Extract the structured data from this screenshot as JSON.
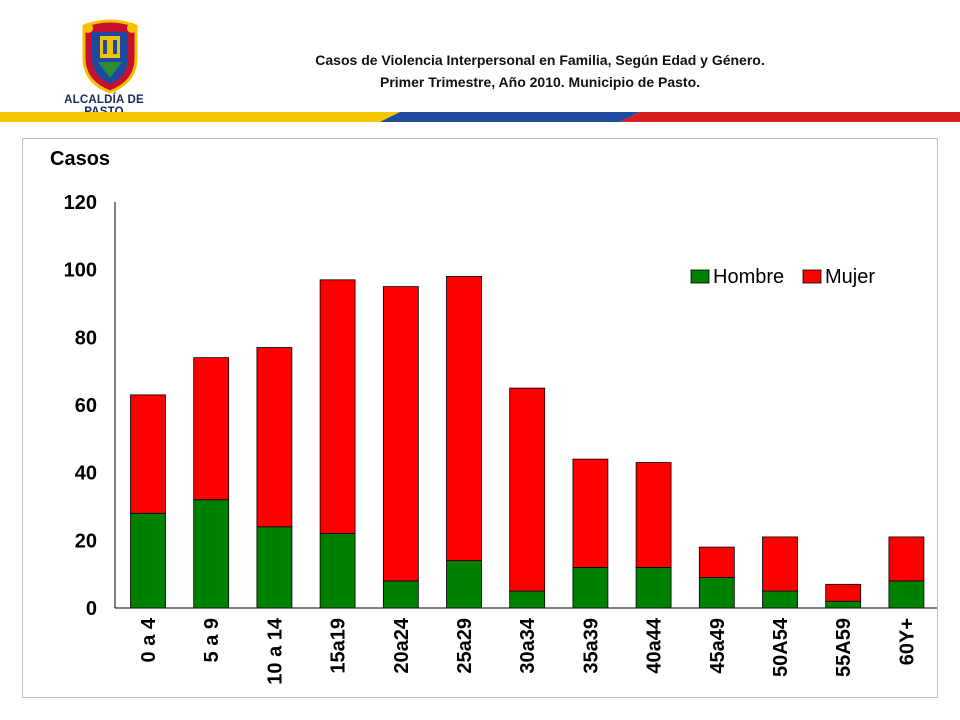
{
  "header": {
    "logo_text": "ALCALDÍA DE PASTO",
    "title_line1": "Casos de Violencia Interpersonal en Familia, Según Edad y Género.",
    "title_line2": "Primer Trimestre, Año 2010. Municipio de Pasto."
  },
  "colors": {
    "hombre": "#008000",
    "mujer": "#ff0000",
    "stripe_yellow": "#f5c400",
    "stripe_blue": "#1f4aa0",
    "stripe_red": "#d81e1e"
  },
  "chart_data": {
    "type": "bar",
    "stacked": true,
    "ylabel": "Casos",
    "ylim": [
      0,
      120
    ],
    "yticks": [
      0,
      20,
      40,
      60,
      80,
      100,
      120
    ],
    "grid": false,
    "legend_position": "top-right",
    "categories": [
      "0 a 4",
      "5 a 9",
      "10 a 14",
      "15a19",
      "20a24",
      "25a29",
      "30a34",
      "35a39",
      "40a44",
      "45a49",
      "50A54",
      "55A59",
      "60Y+"
    ],
    "series": [
      {
        "name": "Hombre",
        "values": [
          28,
          32,
          24,
          22,
          8,
          14,
          5,
          12,
          12,
          9,
          5,
          2,
          8
        ]
      },
      {
        "name": "Mujer",
        "values": [
          35,
          42,
          53,
          75,
          87,
          84,
          60,
          32,
          31,
          9,
          16,
          5,
          13
        ]
      }
    ]
  }
}
